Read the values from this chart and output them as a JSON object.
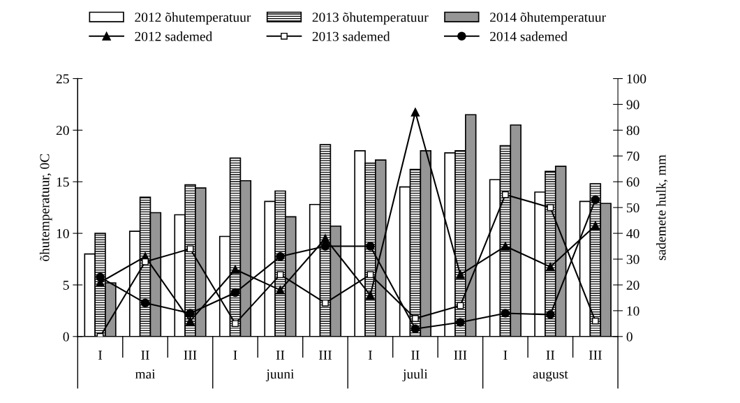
{
  "chart_data": {
    "type": "bar",
    "categories": [
      "I",
      "II",
      "III",
      "I",
      "II",
      "III",
      "I",
      "II",
      "III",
      "I",
      "II",
      "III"
    ],
    "ylabel": "õhutemperatuur, 0C",
    "y2label": "sademete hulk, mm",
    "ylim": [
      0,
      25
    ],
    "yticks": [
      0,
      5,
      10,
      15,
      20,
      25
    ],
    "y2lim": [
      0,
      100
    ],
    "y2ticks": [
      0,
      10,
      20,
      30,
      40,
      50,
      60,
      70,
      80,
      90,
      100
    ],
    "grid": false,
    "legend": "top",
    "annotations": [
      "mai",
      "juuni",
      "juuli",
      "august"
    ],
    "series": [
      {
        "name": "2012 õhutemperatuur",
        "color": "#ffffff",
        "values": [
          8.0,
          10.2,
          11.8,
          9.7,
          13.1,
          12.8,
          18.0,
          14.5,
          17.8,
          15.2,
          14.0,
          13.1
        ]
      },
      {
        "name": "2013 õhutemperatuur",
        "color": "#000000",
        "values": [
          10.0,
          13.5,
          14.7,
          17.3,
          14.1,
          18.6,
          16.8,
          16.2,
          18.0,
          18.5,
          16.0,
          14.8
        ]
      },
      {
        "name": "2014 õhutemperatuur",
        "color": "#969696",
        "values": [
          5.2,
          12.0,
          14.4,
          15.1,
          11.6,
          10.7,
          17.1,
          18.0,
          21.5,
          20.5,
          16.5,
          12.9
        ]
      },
      {
        "name": "2012 sademed",
        "type": "line",
        "axis": "y2",
        "color": "#000000",
        "marker": "triangle",
        "values": [
          21,
          31,
          6,
          26,
          18,
          38,
          16,
          87,
          24,
          35,
          27,
          43
        ]
      },
      {
        "name": "2013 sademed",
        "type": "line",
        "axis": "y2",
        "color": "#000000",
        "marker": "square",
        "values": [
          0,
          29,
          34,
          5,
          24,
          13,
          24,
          7,
          12,
          55,
          50,
          6
        ]
      },
      {
        "name": "2014 sademed",
        "type": "line",
        "axis": "y2",
        "color": "#000000",
        "marker": "circle",
        "values": [
          23,
          13,
          9,
          17,
          31,
          35,
          35,
          3,
          5.5,
          9,
          8.5,
          53
        ]
      }
    ]
  }
}
